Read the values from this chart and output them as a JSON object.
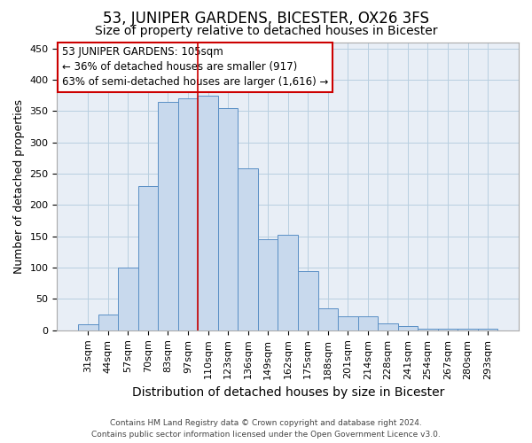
{
  "title": "53, JUNIPER GARDENS, BICESTER, OX26 3FS",
  "subtitle": "Size of property relative to detached houses in Bicester",
  "xlabel": "Distribution of detached houses by size in Bicester",
  "ylabel": "Number of detached properties",
  "footer_line1": "Contains HM Land Registry data © Crown copyright and database right 2024.",
  "footer_line2": "Contains public sector information licensed under the Open Government Licence v3.0.",
  "categories": [
    "31sqm",
    "44sqm",
    "57sqm",
    "70sqm",
    "83sqm",
    "97sqm",
    "110sqm",
    "123sqm",
    "136sqm",
    "149sqm",
    "162sqm",
    "175sqm",
    "188sqm",
    "201sqm",
    "214sqm",
    "228sqm",
    "241sqm",
    "254sqm",
    "267sqm",
    "280sqm",
    "293sqm"
  ],
  "bar_heights": [
    10,
    25,
    100,
    230,
    365,
    370,
    375,
    355,
    258,
    145,
    153,
    95,
    35,
    22,
    22,
    11,
    7,
    3,
    3,
    2,
    2
  ],
  "bar_color": "#c8d9ed",
  "bar_edge_color": "#5a8fc5",
  "annotation_line1": "53 JUNIPER GARDENS: 105sqm",
  "annotation_line2": "← 36% of detached houses are smaller (917)",
  "annotation_line3": "63% of semi-detached houses are larger (1,616) →",
  "annotation_box_color": "#ffffff",
  "annotation_box_edge_color": "#cc0000",
  "vline_x": 5.5,
  "vline_color": "#cc0000",
  "ylim": [
    0,
    460
  ],
  "yticks": [
    0,
    50,
    100,
    150,
    200,
    250,
    300,
    350,
    400,
    450
  ],
  "grid_color": "#b8cfe0",
  "bg_color": "#e8eef6",
  "title_fontsize": 12,
  "subtitle_fontsize": 10,
  "ylabel_fontsize": 9,
  "xlabel_fontsize": 10,
  "tick_fontsize": 8
}
